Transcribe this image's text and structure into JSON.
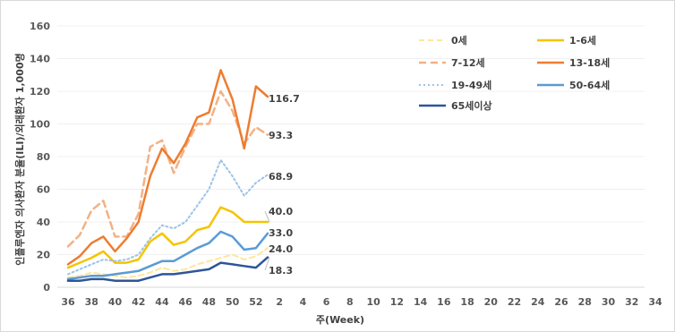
{
  "chart_data": {
    "type": "line",
    "xlabel": "주(Week)",
    "ylabel": "인플루엔자 의사환자 분율(ILI)/외래환자 1,000명",
    "ylim": [
      0,
      160
    ],
    "yticks": [
      0,
      20,
      40,
      60,
      80,
      100,
      120,
      140,
      160
    ],
    "weeks": [
      36,
      37,
      38,
      39,
      40,
      41,
      42,
      43,
      44,
      45,
      46,
      47,
      48,
      49,
      50,
      51,
      52,
      1
    ],
    "xtick_labels": [
      "36",
      "38",
      "40",
      "42",
      "44",
      "46",
      "48",
      "50",
      "52",
      "2",
      "4",
      "6",
      "8",
      "10",
      "12",
      "14",
      "16",
      "18",
      "20",
      "22",
      "24",
      "26",
      "28",
      "30",
      "32",
      "34"
    ],
    "series": [
      {
        "name": "0세",
        "color": "#FFE699",
        "dash": "6,4",
        "width": 2,
        "values": [
          6,
          7,
          9,
          8,
          7,
          6,
          7,
          9,
          12,
          10,
          11,
          14,
          16,
          18,
          20,
          17,
          19,
          24
        ],
        "end_label": "24.0"
      },
      {
        "name": "1-6세",
        "color": "#F5C400",
        "dash": "",
        "width": 2.5,
        "values": [
          12,
          15,
          18,
          22,
          15,
          15,
          17,
          28,
          33,
          26,
          28,
          35,
          37,
          49,
          46,
          40,
          40,
          40
        ],
        "end_label": "40.0"
      },
      {
        "name": "7-12세",
        "color": "#F4B183",
        "dash": "8,5",
        "width": 2.5,
        "values": [
          25,
          32,
          47,
          53,
          31,
          31,
          45,
          86,
          90,
          70,
          86,
          100,
          100,
          120,
          108,
          88,
          98,
          93.3
        ],
        "end_label": "93.3"
      },
      {
        "name": "13-18세",
        "color": "#ED7D31",
        "dash": "",
        "width": 2.5,
        "values": [
          14,
          19,
          27,
          31,
          22,
          30,
          40,
          68,
          85,
          76,
          88,
          104,
          107,
          133,
          115,
          85,
          123,
          116.7
        ],
        "end_label": "116.7"
      },
      {
        "name": "19-49세",
        "color": "#9DC3E6",
        "dash": "2,3",
        "width": 2,
        "values": [
          8,
          11,
          14,
          17,
          16,
          17,
          20,
          30,
          38,
          36,
          40,
          50,
          60,
          78,
          68,
          56,
          64,
          68.9
        ],
        "end_label": "68.9"
      },
      {
        "name": "50-64세",
        "color": "#5B9BD5",
        "dash": "",
        "width": 2.5,
        "values": [
          5,
          6,
          7,
          7,
          8,
          9,
          10,
          13,
          16,
          16,
          20,
          24,
          27,
          34,
          31,
          23,
          24,
          33
        ],
        "end_label": "33.0"
      },
      {
        "name": "65세이상",
        "color": "#2F5597",
        "dash": "",
        "width": 2.5,
        "values": [
          4,
          4,
          5,
          5,
          4,
          4,
          4,
          6,
          8,
          8,
          9,
          10,
          11,
          15,
          14,
          13,
          12,
          18.3
        ],
        "end_label": "18.3"
      }
    ]
  }
}
